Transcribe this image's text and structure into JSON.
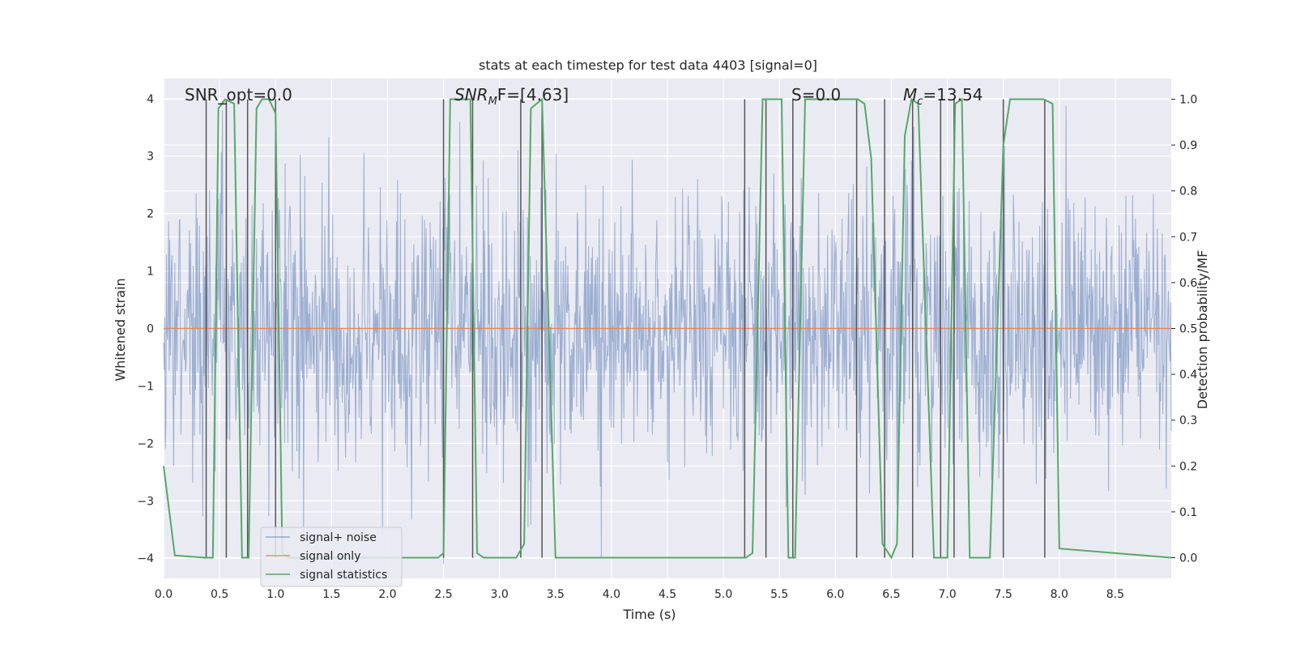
{
  "chart_data": {
    "type": "line",
    "title": "stats at each timestep for test data 4403 [signal=0]",
    "xlabel": "Time (s)",
    "ylabel_left": "Whitened strain",
    "ylabel_right": "Detection probability/MF",
    "xlim": [
      0,
      9
    ],
    "ylim_left": [
      -4.35,
      4.35
    ],
    "ylim_right": [
      -0.045,
      1.045
    ],
    "x_ticks": [
      0.0,
      0.5,
      1.0,
      1.5,
      2.0,
      2.5,
      3.0,
      3.5,
      4.0,
      4.5,
      5.0,
      5.5,
      6.0,
      6.5,
      7.0,
      7.5,
      8.0,
      8.5
    ],
    "x_tick_labels": [
      "0.0",
      "0.5",
      "1.0",
      "1.5",
      "2.0",
      "2.5",
      "3.0",
      "3.5",
      "4.0",
      "4.5",
      "5.0",
      "5.5",
      "6.0",
      "6.5",
      "7.0",
      "7.5",
      "8.0",
      "8.5"
    ],
    "y_left_ticks": [
      4,
      3,
      2,
      1,
      0,
      -1,
      -2,
      -3,
      -4
    ],
    "y_left_tick_labels": [
      "4",
      "3",
      "2",
      "1",
      "0",
      "−1",
      "−2",
      "−3",
      "−4"
    ],
    "y_right_ticks": [
      1.0,
      0.9,
      0.8,
      0.7,
      0.6,
      0.5,
      0.4,
      0.3,
      0.2,
      0.1,
      0.0
    ],
    "y_right_tick_labels": [
      "1.0",
      "0.9",
      "0.8",
      "0.7",
      "0.6",
      "0.5",
      "0.4",
      "0.3",
      "0.2",
      "0.1",
      "0.0"
    ],
    "grid": true,
    "legend_position": "lower-left",
    "annotations": [
      "SNR_opt=0.0",
      "SNR",
      "M",
      "F=[4.63]",
      "S=0.0",
      "M",
      "c",
      "=13.54"
    ],
    "series": [
      {
        "name": "signal+ noise",
        "color": "#4c72b0",
        "kind": "noise",
        "x_range": [
          0,
          9
        ],
        "amplitude_std": 1.2
      },
      {
        "name": "signal only",
        "color": "#dd8452",
        "values_constant": 0
      },
      {
        "name": "signal statistics",
        "color": "#55a868",
        "x": [
          0.0,
          0.1,
          0.37,
          0.44,
          0.49,
          0.55,
          0.63,
          0.7,
          0.76,
          0.83,
          0.88,
          0.94,
          1.0,
          1.06,
          1.12,
          1.2,
          1.25,
          2.45,
          2.5,
          2.56,
          2.74,
          2.8,
          2.86,
          3.15,
          3.22,
          3.28,
          3.38,
          3.5,
          5.2,
          5.26,
          5.35,
          5.52,
          5.58,
          5.64,
          5.73,
          6.2,
          6.26,
          6.32,
          6.42,
          6.5,
          6.55,
          6.62,
          6.68,
          6.74,
          6.88,
          7.0,
          7.07,
          7.13,
          7.2,
          7.38,
          7.5,
          7.56,
          7.62,
          7.86,
          7.94,
          8.0,
          9.0
        ],
        "values": [
          0.2,
          0.005,
          0.0,
          0.0,
          0.98,
          1.0,
          0.99,
          0.0,
          0.0,
          0.98,
          1.0,
          1.0,
          0.97,
          0.01,
          0.0,
          0.0,
          0.0,
          0.0,
          0.01,
          1.0,
          1.0,
          0.01,
          0.0,
          0.0,
          0.03,
          0.98,
          1.0,
          0.0,
          0.0,
          0.01,
          1.0,
          1.0,
          0.0,
          0.0,
          1.0,
          1.0,
          0.99,
          0.87,
          0.03,
          0.0,
          0.03,
          0.92,
          1.0,
          0.99,
          0.0,
          0.0,
          0.99,
          1.0,
          0.0,
          0.0,
          0.9,
          1.0,
          1.0,
          1.0,
          0.99,
          0.02,
          0.0
        ]
      }
    ],
    "vertical_lines_x": [
      0.38,
      0.56,
      0.75,
      1.0,
      2.5,
      2.76,
      3.19,
      3.38,
      5.19,
      5.38,
      5.62,
      6.19,
      6.44,
      6.69,
      6.94,
      7.06,
      7.5,
      7.87
    ],
    "vertical_line_color": "#555555"
  }
}
